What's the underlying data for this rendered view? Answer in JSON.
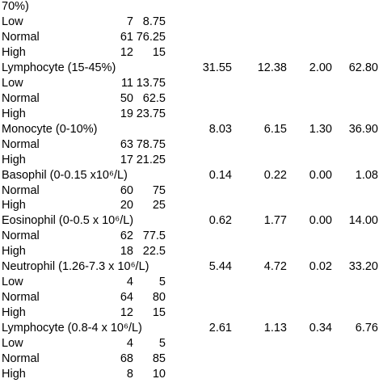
{
  "table": {
    "rows": [
      [
        "70%)"
      ],
      [
        "Low",
        "7",
        "8.75"
      ],
      [
        "Normal",
        "61",
        "76.25"
      ],
      [
        "High",
        "12",
        "15"
      ],
      [
        "Lymphocyte (15-45%)",
        "31.55",
        "12.38",
        "2.00",
        "62.80"
      ],
      [
        "Low",
        "11",
        "13.75"
      ],
      [
        "Normal",
        "50",
        "62.5"
      ],
      [
        "High",
        "19",
        "23.75"
      ],
      [
        "Monocyte (0-10%)",
        "8.03",
        "6.15",
        "1.30",
        "36.90"
      ],
      [
        "Normal",
        "63",
        "78.75"
      ],
      [
        "High",
        "17",
        "21.25"
      ],
      [
        "Basophil (0-0.15 x10⁶/L)",
        "0.14",
        "0.22",
        "0.00",
        "1.08"
      ],
      [
        "Normal",
        "60",
        "75"
      ],
      [
        "High",
        "20",
        "25"
      ],
      [
        "Eosinophil (0-0.5 x 10⁶/L)",
        "0.62",
        "1.77",
        "0.00",
        "14.00"
      ],
      [
        "Normal",
        "62",
        "77.5"
      ],
      [
        "High",
        "18",
        "22.5"
      ],
      [
        "Neutrophil (1.26-7.3 x 10⁶/L)",
        "5.44",
        "4.72",
        "0.02",
        "33.20"
      ],
      [
        "Low",
        "4",
        "5"
      ],
      [
        "Normal",
        "64",
        "80"
      ],
      [
        "High",
        "12",
        "15"
      ],
      [
        "Lymphocyte (0.8-4 x 10⁶/L)",
        "2.61",
        "1.13",
        "0.34",
        "6.76"
      ],
      [
        "Low",
        "4",
        "5"
      ],
      [
        "Normal",
        "68",
        "85"
      ],
      [
        "High",
        "8",
        "10"
      ]
    ]
  }
}
